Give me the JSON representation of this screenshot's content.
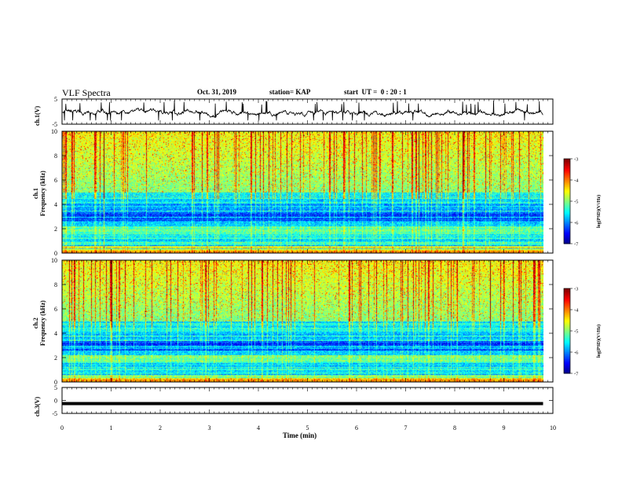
{
  "header": {
    "title": "VLF Spectra",
    "date": "Oct. 31, 2019",
    "station": "station= KAP",
    "start": "start  UT =  0 : 20 : 1"
  },
  "chart_data": [
    {
      "id": "ch1-waveform",
      "type": "line",
      "ylabel": "ch.1(V)",
      "ylim": [
        -5,
        5
      ],
      "yticks": [
        "5",
        "-5"
      ],
      "xlim": [
        0,
        10
      ],
      "description_values": {
        "mean_v": -0.5,
        "range_v": [
          -3.5,
          4.5
        ],
        "extent_min": 9.8
      },
      "color": "#000000"
    },
    {
      "id": "ch1-spectrogram",
      "type": "heatmap",
      "ylabel": "ch.1\nFrequency (kHz)",
      "ylim": [
        0,
        10
      ],
      "yticks": [
        "0",
        "2",
        "4",
        "6",
        "8",
        "10"
      ],
      "xlim": [
        0,
        10
      ],
      "extent_min": 9.8,
      "colorbar": {
        "label": "log(PSD)(V²/Hz)",
        "range": [
          -7,
          -3
        ],
        "ticks": [
          "-3",
          "-4",
          "-5",
          "-6",
          "-7"
        ]
      }
    },
    {
      "id": "ch2-spectrogram",
      "type": "heatmap",
      "ylabel": "ch.2\nFrequency (kHz)",
      "ylim": [
        0,
        10
      ],
      "yticks": [
        "0",
        "2",
        "4",
        "6",
        "8",
        "10"
      ],
      "xlim": [
        0,
        10
      ],
      "extent_min": 9.8,
      "colorbar": {
        "label": "log(PSD)(V²/Hz)",
        "range": [
          -7,
          -3
        ],
        "ticks": [
          "-3",
          "-4",
          "-5",
          "-6",
          "-7"
        ]
      }
    },
    {
      "id": "ch3-waveform",
      "type": "line",
      "ylabel": "ch.3(V)",
      "ylim": [
        -5,
        5
      ],
      "yticks": [
        "5",
        "0",
        "-5"
      ],
      "xlim": [
        0,
        10
      ],
      "description_values": {
        "value_v": -1.2,
        "extent_min": 9.8
      },
      "color": "#000000"
    }
  ],
  "xaxis": {
    "label": "Time (min)",
    "ticks": [
      "0",
      "1",
      "2",
      "3",
      "4",
      "5",
      "6",
      "7",
      "8",
      "9",
      "10"
    ]
  }
}
